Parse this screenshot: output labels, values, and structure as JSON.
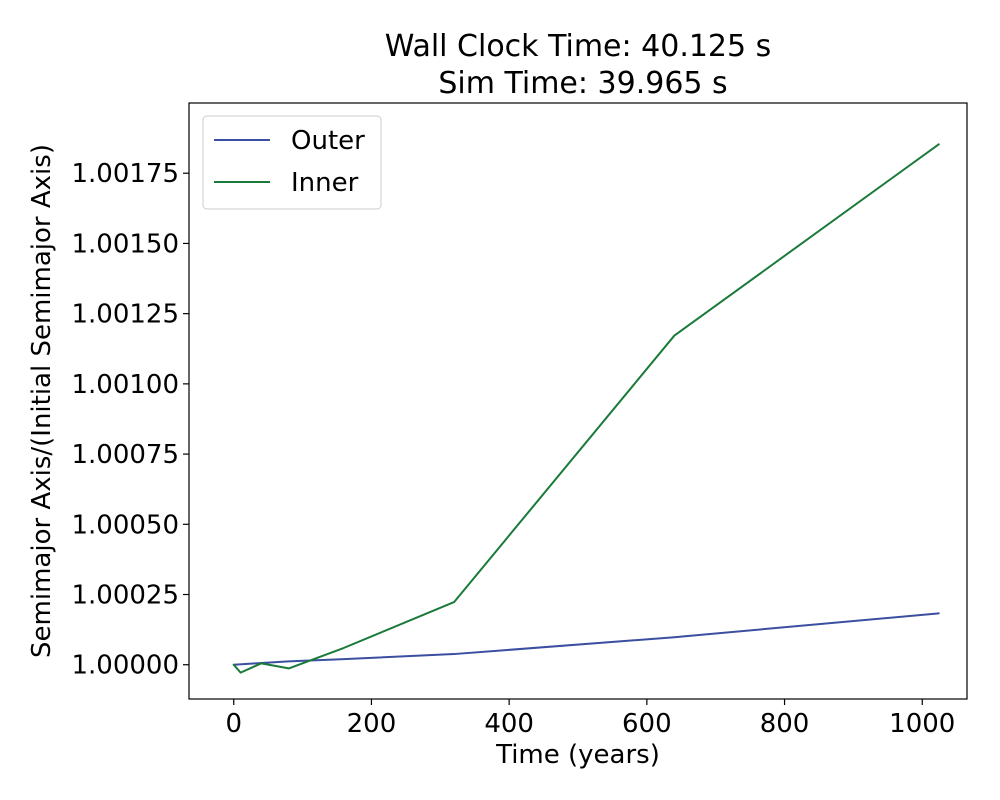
{
  "chart_data": {
    "type": "line",
    "title_lines": [
      "Wall Clock Time: 40.125 s",
      "Sim Time: 39.965 s"
    ],
    "xlabel": "Time (years)",
    "ylabel": "Semimajor Axis/(Initial Semimajor Axis)",
    "xlim": [
      -65,
      1065
    ],
    "ylim": [
      0.999878,
      1.002
    ],
    "xticks": [
      0,
      200,
      400,
      600,
      800,
      1000
    ],
    "xtick_labels": [
      "0",
      "200",
      "400",
      "600",
      "800",
      "1000"
    ],
    "yticks": [
      1.0,
      1.00025,
      1.0005,
      1.00075,
      1.001,
      1.00125,
      1.0015,
      1.00175
    ],
    "ytick_labels": [
      "1.00000",
      "1.00025",
      "1.00050",
      "1.00075",
      "1.00100",
      "1.00125",
      "1.00150",
      "1.00175"
    ],
    "grid": false,
    "legend_position": "top-left",
    "series": [
      {
        "name": "Outer",
        "color": "#3a4fa0",
        "x": [
          0,
          40,
          80,
          160,
          320,
          640,
          1024
        ],
        "y": [
          1.0,
          1.000006,
          1.000012,
          1.00002,
          1.000038,
          1.000098,
          1.000183
        ]
      },
      {
        "name": "Inner",
        "color": "#1a7a3a",
        "x": [
          0,
          10,
          40,
          80,
          160,
          320,
          640,
          1024
        ],
        "y": [
          1.0,
          0.999972,
          1.000005,
          0.999987,
          1.00006,
          1.000223,
          1.001172,
          1.001853
        ]
      }
    ]
  }
}
